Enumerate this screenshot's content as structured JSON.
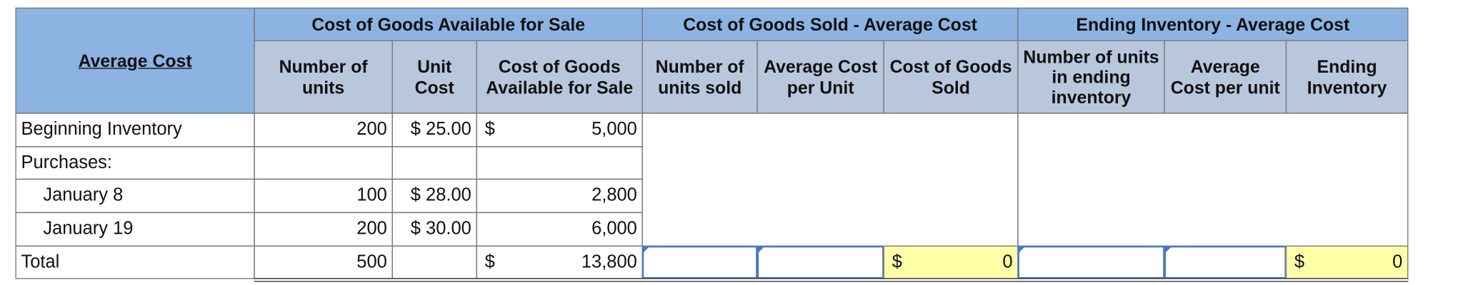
{
  "table": {
    "corner": "Average Cost",
    "groups": [
      "Cost of Goods Available for Sale",
      "Cost of Goods Sold - Average Cost",
      "Ending Inventory - Average Cost"
    ],
    "columns": [
      "Number of units",
      "Unit Cost",
      "Cost of Goods Available for Sale",
      "Number of units sold",
      "Average Cost per Unit",
      "Cost of Goods Sold",
      "Number of units in ending inventory",
      "Average Cost per unit",
      "Ending Inventory"
    ],
    "rows": [
      {
        "label": "Beginning Inventory",
        "units": "200",
        "unit_cost": "$ 25.00",
        "cost_sign": "$",
        "cost": "5,000"
      },
      {
        "label": "Purchases:"
      },
      {
        "label": "January 8",
        "units": "100",
        "unit_cost": "$ 28.00",
        "cost": "2,800"
      },
      {
        "label": "January 19",
        "units": "200",
        "unit_cost": "$ 30.00",
        "cost": "6,000"
      },
      {
        "label": "Total",
        "units": "500",
        "cost_sign": "$",
        "cost": "13,800",
        "cogs_sign": "$",
        "cogs": "0",
        "ending_sign": "$",
        "ending": "0"
      }
    ]
  }
}
